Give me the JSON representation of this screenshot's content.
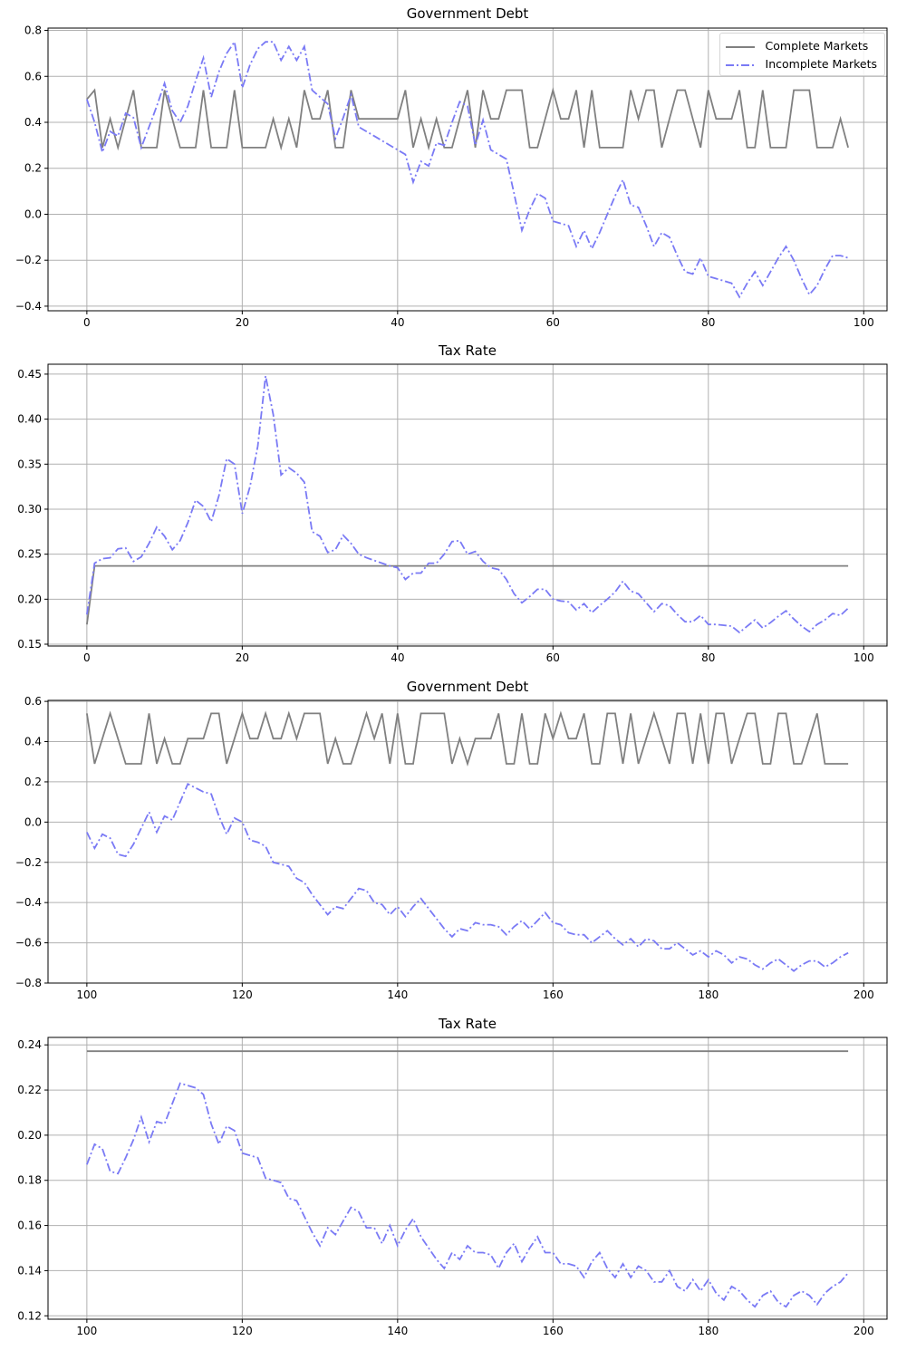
{
  "figure": {
    "legend": {
      "complete_label": "Complete Markets",
      "incomplete_label": "Incomplete Markets"
    },
    "colors": {
      "complete": "#808080",
      "incomplete": "#7a7af5",
      "grid": "#b0b0b0",
      "axis": "#000000"
    }
  },
  "panels": [
    {
      "title": "Government Debt"
    },
    {
      "title": "Tax Rate"
    },
    {
      "title": "Government Debt"
    },
    {
      "title": "Tax Rate"
    }
  ],
  "chart_data": [
    {
      "type": "line",
      "title": "Government Debt",
      "xlabel": "",
      "ylabel": "",
      "xlim": [
        -5,
        103
      ],
      "ylim": [
        -0.42,
        0.81
      ],
      "xticks": [
        0,
        20,
        40,
        60,
        80,
        100
      ],
      "yticks": [
        -0.4,
        -0.2,
        0.0,
        0.2,
        0.4,
        0.6,
        0.8
      ],
      "ytick_labels": [
        "−0.4",
        "−0.2",
        "0.0",
        "0.2",
        "0.4",
        "0.6",
        "0.8"
      ],
      "grid": true,
      "legend_position": "upper right",
      "x_start": 0,
      "series": [
        {
          "name": "Complete Markets",
          "style": "solid",
          "values": [
            0.5,
            0.54,
            0.29,
            0.415,
            0.29,
            0.415,
            0.54,
            0.29,
            0.29,
            0.29,
            0.54,
            0.415,
            0.29,
            0.29,
            0.29,
            0.54,
            0.29,
            0.29,
            0.29,
            0.54,
            0.29,
            0.29,
            0.29,
            0.29,
            0.415,
            0.29,
            0.415,
            0.29,
            0.54,
            0.415,
            0.415,
            0.54,
            0.29,
            0.29,
            0.54,
            0.415,
            0.415,
            0.415,
            0.415,
            0.415,
            0.415,
            0.54,
            0.29,
            0.415,
            0.29,
            0.415,
            0.29,
            0.29,
            0.415,
            0.54,
            0.29,
            0.54,
            0.415,
            0.415,
            0.54,
            0.54,
            0.54,
            0.29,
            0.29,
            0.415,
            0.54,
            0.415,
            0.415,
            0.54,
            0.29,
            0.54,
            0.29,
            0.29,
            0.29,
            0.29,
            0.54,
            0.415,
            0.54,
            0.54,
            0.29,
            0.415,
            0.54,
            0.54,
            0.415,
            0.29,
            0.54,
            0.415,
            0.415,
            0.415,
            0.54,
            0.29,
            0.29,
            0.54,
            0.29,
            0.29,
            0.29,
            0.54,
            0.54,
            0.54,
            0.29,
            0.29,
            0.29,
            0.415,
            0.29
          ]
        },
        {
          "name": "Incomplete Markets",
          "style": "dashdot",
          "values": [
            0.5,
            0.4,
            0.27,
            0.36,
            0.34,
            0.44,
            0.42,
            0.29,
            0.38,
            0.47,
            0.57,
            0.45,
            0.4,
            0.47,
            0.58,
            0.68,
            0.51,
            0.62,
            0.7,
            0.75,
            0.55,
            0.65,
            0.72,
            0.75,
            0.75,
            0.67,
            0.73,
            0.67,
            0.73,
            0.54,
            0.51,
            0.48,
            0.33,
            0.42,
            0.52,
            0.38,
            0.36,
            0.34,
            0.32,
            0.3,
            0.28,
            0.26,
            0.14,
            0.23,
            0.21,
            0.31,
            0.3,
            0.4,
            0.49,
            0.47,
            0.3,
            0.41,
            0.28,
            0.26,
            0.24,
            0.09,
            -0.07,
            0.02,
            0.09,
            0.07,
            -0.03,
            -0.04,
            -0.05,
            -0.14,
            -0.07,
            -0.15,
            -0.08,
            0.0,
            0.08,
            0.15,
            0.04,
            0.03,
            -0.05,
            -0.14,
            -0.08,
            -0.1,
            -0.18,
            -0.25,
            -0.26,
            -0.19,
            -0.27,
            -0.28,
            -0.29,
            -0.3,
            -0.36,
            -0.3,
            -0.25,
            -0.31,
            -0.25,
            -0.19,
            -0.14,
            -0.2,
            -0.28,
            -0.35,
            -0.31,
            -0.24,
            -0.18,
            -0.18,
            -0.19
          ]
        }
      ]
    },
    {
      "type": "line",
      "title": "Tax Rate",
      "xlabel": "",
      "ylabel": "",
      "xlim": [
        -5,
        103
      ],
      "ylim": [
        0.148,
        0.461
      ],
      "xticks": [
        0,
        20,
        40,
        60,
        80,
        100
      ],
      "yticks": [
        0.15,
        0.2,
        0.25,
        0.3,
        0.35,
        0.4,
        0.45
      ],
      "ytick_labels": [
        "0.15",
        "0.20",
        "0.25",
        "0.30",
        "0.35",
        "0.40",
        "0.45"
      ],
      "grid": true,
      "x_start": 0,
      "series": [
        {
          "name": "Complete Markets",
          "style": "solid",
          "values": [
            0.172,
            0.237,
            0.237,
            0.237,
            0.237,
            0.237,
            0.237,
            0.237,
            0.237,
            0.237,
            0.237,
            0.237,
            0.237,
            0.237,
            0.237,
            0.237,
            0.237,
            0.237,
            0.237,
            0.237,
            0.237,
            0.237,
            0.237,
            0.237,
            0.237,
            0.237,
            0.237,
            0.237,
            0.237,
            0.237,
            0.237,
            0.237,
            0.237,
            0.237,
            0.237,
            0.237,
            0.237,
            0.237,
            0.237,
            0.237,
            0.237,
            0.237,
            0.237,
            0.237,
            0.237,
            0.237,
            0.237,
            0.237,
            0.237,
            0.237,
            0.237,
            0.237,
            0.237,
            0.237,
            0.237,
            0.237,
            0.237,
            0.237,
            0.237,
            0.237,
            0.237,
            0.237,
            0.237,
            0.237,
            0.237,
            0.237,
            0.237,
            0.237,
            0.237,
            0.237,
            0.237,
            0.237,
            0.237,
            0.237,
            0.237,
            0.237,
            0.237,
            0.237,
            0.237,
            0.237,
            0.237,
            0.237,
            0.237,
            0.237,
            0.237,
            0.237,
            0.237,
            0.237,
            0.237,
            0.237,
            0.237,
            0.237,
            0.237,
            0.237,
            0.237,
            0.237,
            0.237,
            0.237,
            0.237
          ]
        },
        {
          "name": "Incomplete Markets",
          "style": "dashdot",
          "values": [
            0.183,
            0.24,
            0.245,
            0.246,
            0.256,
            0.257,
            0.242,
            0.247,
            0.262,
            0.28,
            0.27,
            0.255,
            0.265,
            0.285,
            0.31,
            0.303,
            0.286,
            0.315,
            0.356,
            0.35,
            0.295,
            0.325,
            0.37,
            0.448,
            0.405,
            0.338,
            0.346,
            0.34,
            0.33,
            0.275,
            0.27,
            0.252,
            0.255,
            0.271,
            0.262,
            0.25,
            0.246,
            0.243,
            0.24,
            0.237,
            0.235,
            0.222,
            0.229,
            0.229,
            0.24,
            0.24,
            0.25,
            0.264,
            0.265,
            0.25,
            0.253,
            0.242,
            0.235,
            0.233,
            0.222,
            0.206,
            0.196,
            0.203,
            0.211,
            0.211,
            0.2,
            0.198,
            0.197,
            0.188,
            0.195,
            0.185,
            0.193,
            0.2,
            0.208,
            0.22,
            0.209,
            0.206,
            0.196,
            0.186,
            0.195,
            0.193,
            0.183,
            0.175,
            0.175,
            0.182,
            0.172,
            0.172,
            0.171,
            0.17,
            0.163,
            0.17,
            0.177,
            0.168,
            0.174,
            0.181,
            0.187,
            0.178,
            0.17,
            0.164,
            0.172,
            0.177,
            0.184,
            0.182,
            0.19
          ]
        }
      ]
    },
    {
      "type": "line",
      "title": "Government Debt",
      "xlabel": "",
      "ylabel": "",
      "xlim": [
        95,
        203
      ],
      "ylim": [
        -0.8,
        0.605
      ],
      "xticks": [
        100,
        120,
        140,
        160,
        180,
        200
      ],
      "yticks": [
        -0.8,
        -0.6,
        -0.4,
        -0.2,
        0.0,
        0.2,
        0.4,
        0.6
      ],
      "ytick_labels": [
        "−0.8",
        "−0.6",
        "−0.4",
        "−0.2",
        "0.0",
        "0.2",
        "0.4",
        "0.6"
      ],
      "grid": true,
      "x_start": 100,
      "series": [
        {
          "name": "Complete Markets",
          "style": "solid",
          "values": [
            0.54,
            0.29,
            0.415,
            0.54,
            0.415,
            0.29,
            0.29,
            0.29,
            0.54,
            0.29,
            0.415,
            0.29,
            0.29,
            0.415,
            0.415,
            0.415,
            0.54,
            0.54,
            0.29,
            0.415,
            0.54,
            0.415,
            0.415,
            0.54,
            0.415,
            0.415,
            0.54,
            0.415,
            0.54,
            0.54,
            0.54,
            0.29,
            0.415,
            0.29,
            0.29,
            0.415,
            0.54,
            0.415,
            0.54,
            0.29,
            0.54,
            0.29,
            0.29,
            0.54,
            0.54,
            0.54,
            0.54,
            0.29,
            0.415,
            0.29,
            0.415,
            0.415,
            0.415,
            0.54,
            0.29,
            0.29,
            0.54,
            0.29,
            0.29,
            0.54,
            0.415,
            0.54,
            0.415,
            0.415,
            0.54,
            0.29,
            0.29,
            0.54,
            0.54,
            0.29,
            0.54,
            0.29,
            0.415,
            0.54,
            0.415,
            0.29,
            0.54,
            0.54,
            0.29,
            0.54,
            0.29,
            0.54,
            0.54,
            0.29,
            0.415,
            0.54,
            0.54,
            0.29,
            0.29,
            0.54,
            0.54,
            0.29,
            0.29,
            0.415,
            0.54,
            0.29,
            0.29,
            0.29,
            0.29
          ]
        },
        {
          "name": "Incomplete Markets",
          "style": "dashdot",
          "values": [
            -0.05,
            -0.13,
            -0.06,
            -0.08,
            -0.16,
            -0.17,
            -0.11,
            -0.03,
            0.05,
            -0.05,
            0.03,
            0.01,
            0.1,
            0.19,
            0.17,
            0.15,
            0.14,
            0.03,
            -0.06,
            0.02,
            0.0,
            -0.09,
            -0.1,
            -0.12,
            -0.2,
            -0.21,
            -0.22,
            -0.28,
            -0.3,
            -0.36,
            -0.41,
            -0.46,
            -0.42,
            -0.43,
            -0.38,
            -0.33,
            -0.34,
            -0.4,
            -0.41,
            -0.46,
            -0.42,
            -0.47,
            -0.42,
            -0.38,
            -0.43,
            -0.48,
            -0.53,
            -0.57,
            -0.53,
            -0.54,
            -0.5,
            -0.51,
            -0.51,
            -0.52,
            -0.56,
            -0.52,
            -0.49,
            -0.53,
            -0.49,
            -0.45,
            -0.5,
            -0.51,
            -0.55,
            -0.56,
            -0.56,
            -0.6,
            -0.57,
            -0.54,
            -0.58,
            -0.61,
            -0.58,
            -0.62,
            -0.58,
            -0.59,
            -0.63,
            -0.63,
            -0.6,
            -0.63,
            -0.66,
            -0.64,
            -0.67,
            -0.64,
            -0.66,
            -0.7,
            -0.67,
            -0.68,
            -0.71,
            -0.73,
            -0.7,
            -0.68,
            -0.71,
            -0.74,
            -0.71,
            -0.69,
            -0.69,
            -0.72,
            -0.7,
            -0.67,
            -0.65
          ]
        }
      ]
    },
    {
      "type": "line",
      "title": "Tax Rate",
      "xlabel": "",
      "ylabel": "",
      "xlim": [
        95,
        203
      ],
      "ylim": [
        0.1185,
        0.2433
      ],
      "xticks": [
        100,
        120,
        140,
        160,
        180,
        200
      ],
      "yticks": [
        0.12,
        0.14,
        0.16,
        0.18,
        0.2,
        0.22,
        0.24
      ],
      "ytick_labels": [
        "0.12",
        "0.14",
        "0.16",
        "0.18",
        "0.20",
        "0.22",
        "0.24"
      ],
      "grid": true,
      "x_start": 100,
      "series": [
        {
          "name": "Complete Markets",
          "style": "solid",
          "values": [
            0.2372,
            0.2372,
            0.2372,
            0.2372,
            0.2372,
            0.2372,
            0.2372,
            0.2372,
            0.2372,
            0.2372,
            0.2372,
            0.2372,
            0.2372,
            0.2372,
            0.2372,
            0.2372,
            0.2372,
            0.2372,
            0.2372,
            0.2372,
            0.2372,
            0.2372,
            0.2372,
            0.2372,
            0.2372,
            0.2372,
            0.2372,
            0.2372,
            0.2372,
            0.2372,
            0.2372,
            0.2372,
            0.2372,
            0.2372,
            0.2372,
            0.2372,
            0.2372,
            0.2372,
            0.2372,
            0.2372,
            0.2372,
            0.2372,
            0.2372,
            0.2372,
            0.2372,
            0.2372,
            0.2372,
            0.2372,
            0.2372,
            0.2372,
            0.2372,
            0.2372,
            0.2372,
            0.2372,
            0.2372,
            0.2372,
            0.2372,
            0.2372,
            0.2372,
            0.2372,
            0.2372,
            0.2372,
            0.2372,
            0.2372,
            0.2372,
            0.2372,
            0.2372,
            0.2372,
            0.2372,
            0.2372,
            0.2372,
            0.2372,
            0.2372,
            0.2372,
            0.2372,
            0.2372,
            0.2372,
            0.2372,
            0.2372,
            0.2372,
            0.2372,
            0.2372,
            0.2372,
            0.2372,
            0.2372,
            0.2372,
            0.2372,
            0.2372,
            0.2372,
            0.2372,
            0.2372,
            0.2372,
            0.2372,
            0.2372,
            0.2372,
            0.2372,
            0.2372,
            0.2372,
            0.2372
          ]
        },
        {
          "name": "Incomplete Markets",
          "style": "dashdot",
          "values": [
            0.187,
            0.196,
            0.194,
            0.184,
            0.183,
            0.19,
            0.198,
            0.208,
            0.197,
            0.206,
            0.205,
            0.214,
            0.223,
            0.222,
            0.221,
            0.218,
            0.205,
            0.196,
            0.204,
            0.202,
            0.192,
            0.191,
            0.19,
            0.181,
            0.18,
            0.179,
            0.172,
            0.171,
            0.164,
            0.157,
            0.151,
            0.159,
            0.156,
            0.162,
            0.168,
            0.166,
            0.159,
            0.159,
            0.152,
            0.16,
            0.151,
            0.158,
            0.163,
            0.155,
            0.15,
            0.145,
            0.141,
            0.148,
            0.145,
            0.151,
            0.148,
            0.148,
            0.147,
            0.141,
            0.148,
            0.152,
            0.144,
            0.15,
            0.155,
            0.148,
            0.148,
            0.143,
            0.143,
            0.142,
            0.137,
            0.144,
            0.148,
            0.141,
            0.137,
            0.143,
            0.137,
            0.142,
            0.14,
            0.135,
            0.135,
            0.14,
            0.133,
            0.131,
            0.136,
            0.131,
            0.136,
            0.13,
            0.127,
            0.133,
            0.131,
            0.127,
            0.124,
            0.129,
            0.131,
            0.126,
            0.124,
            0.129,
            0.131,
            0.129,
            0.125,
            0.13,
            0.133,
            0.135,
            0.139
          ]
        }
      ]
    }
  ]
}
